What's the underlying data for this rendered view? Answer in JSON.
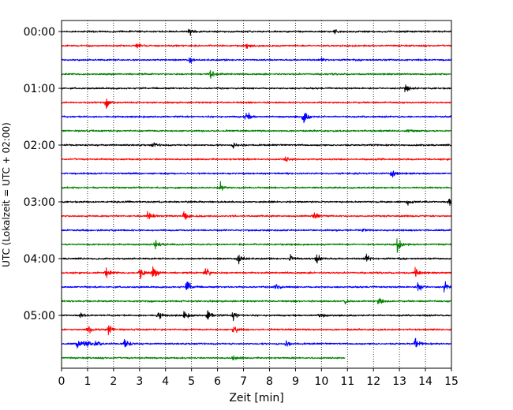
{
  "chart_data": {
    "type": "line",
    "title": "",
    "xlabel": "Zeit  [min]",
    "ylabel": "UTC (Lokalzeit = UTC + 02:00)",
    "xlim": [
      0,
      15
    ],
    "xticks": [
      0,
      1,
      2,
      3,
      4,
      5,
      6,
      7,
      8,
      9,
      10,
      11,
      12,
      13,
      14,
      15
    ],
    "ytick_labels": [
      "00:00",
      "01:00",
      "02:00",
      "03:00",
      "04:00",
      "05:00"
    ],
    "grid": "vertical dotted",
    "trace_interval_minutes": 15,
    "trace_colors": [
      "#000000",
      "#ff0000",
      "#0000ff",
      "#008000"
    ],
    "traces": [
      {
        "start": "00:00",
        "color": "#000000",
        "end_min": 15,
        "events": [
          [
            4.9,
            1.2
          ],
          [
            10.5,
            0.8
          ]
        ]
      },
      {
        "start": "00:15",
        "color": "#ff0000",
        "end_min": 15,
        "events": [
          [
            2.9,
            0.8
          ],
          [
            7.1,
            0.7
          ]
        ]
      },
      {
        "start": "00:30",
        "color": "#0000ff",
        "end_min": 15,
        "events": [
          [
            4.9,
            1.0
          ],
          [
            10.0,
            0.7
          ]
        ]
      },
      {
        "start": "00:45",
        "color": "#008000",
        "end_min": 15,
        "events": [
          [
            5.7,
            2.0
          ]
        ]
      },
      {
        "start": "01:00",
        "color": "#000000",
        "end_min": 15,
        "events": [
          [
            13.2,
            1.6
          ]
        ]
      },
      {
        "start": "01:15",
        "color": "#ff0000",
        "end_min": 15,
        "events": [
          [
            1.7,
            1.6
          ]
        ]
      },
      {
        "start": "01:30",
        "color": "#0000ff",
        "end_min": 15,
        "events": [
          [
            7.1,
            1.6
          ],
          [
            9.3,
            2.4
          ]
        ]
      },
      {
        "start": "01:45",
        "color": "#008000",
        "end_min": 15,
        "events": [
          [
            13.3,
            0.8
          ]
        ]
      },
      {
        "start": "02:00",
        "color": "#000000",
        "end_min": 15,
        "events": [
          [
            3.5,
            0.8
          ],
          [
            6.6,
            0.8
          ]
        ]
      },
      {
        "start": "02:15",
        "color": "#ff0000",
        "end_min": 15,
        "events": [
          [
            8.6,
            0.8
          ]
        ]
      },
      {
        "start": "02:30",
        "color": "#0000ff",
        "end_min": 15,
        "events": [
          [
            12.7,
            1.6
          ]
        ]
      },
      {
        "start": "02:45",
        "color": "#008000",
        "end_min": 15,
        "events": [
          [
            6.1,
            1.6
          ]
        ]
      },
      {
        "start": "03:00",
        "color": "#000000",
        "end_min": 15,
        "events": [
          [
            13.3,
            1.0
          ],
          [
            14.9,
            2.4
          ]
        ]
      },
      {
        "start": "03:15",
        "color": "#ff0000",
        "end_min": 15,
        "events": [
          [
            3.3,
            1.6
          ],
          [
            4.7,
            2.2
          ],
          [
            9.7,
            1.2
          ]
        ]
      },
      {
        "start": "03:30",
        "color": "#0000ff",
        "end_min": 15,
        "events": [
          [
            11.6,
            0.6
          ]
        ]
      },
      {
        "start": "03:45",
        "color": "#008000",
        "end_min": 15,
        "events": [
          [
            3.6,
            1.4
          ],
          [
            12.9,
            2.4
          ]
        ]
      },
      {
        "start": "04:00",
        "color": "#000000",
        "end_min": 15,
        "events": [
          [
            6.8,
            2.2
          ],
          [
            8.8,
            1.2
          ],
          [
            9.8,
            2.0
          ],
          [
            11.7,
            2.0
          ]
        ]
      },
      {
        "start": "04:15",
        "color": "#ff0000",
        "end_min": 15,
        "events": [
          [
            1.7,
            1.8
          ],
          [
            3.0,
            2.4
          ],
          [
            3.5,
            2.0
          ],
          [
            5.5,
            2.4
          ],
          [
            13.6,
            1.8
          ]
        ]
      },
      {
        "start": "04:30",
        "color": "#0000ff",
        "end_min": 15,
        "events": [
          [
            4.8,
            2.4
          ],
          [
            8.2,
            1.6
          ],
          [
            13.7,
            2.4
          ],
          [
            14.7,
            2.0
          ]
        ]
      },
      {
        "start": "04:45",
        "color": "#008000",
        "end_min": 15,
        "events": [
          [
            10.9,
            0.8
          ],
          [
            12.2,
            1.6
          ]
        ]
      },
      {
        "start": "05:00",
        "color": "#000000",
        "end_min": 15,
        "events": [
          [
            0.7,
            1.2
          ],
          [
            3.7,
            1.4
          ],
          [
            4.7,
            1.4
          ],
          [
            5.6,
            2.4
          ],
          [
            6.6,
            1.6
          ],
          [
            9.9,
            1.0
          ]
        ]
      },
      {
        "start": "05:15",
        "color": "#ff0000",
        "end_min": 15,
        "events": [
          [
            1.0,
            1.6
          ],
          [
            1.8,
            1.6
          ],
          [
            6.6,
            1.8
          ]
        ]
      },
      {
        "start": "05:30",
        "color": "#0000ff",
        "end_min": 15,
        "events": [
          [
            0.6,
            1.6
          ],
          [
            0.9,
            2.0
          ],
          [
            1.3,
            1.6
          ],
          [
            2.4,
            2.4
          ],
          [
            8.6,
            1.0
          ],
          [
            13.6,
            1.6
          ]
        ]
      },
      {
        "start": "05:45",
        "color": "#008000",
        "end_min": 10.9,
        "events": [
          [
            6.6,
            1.2
          ]
        ]
      }
    ]
  }
}
